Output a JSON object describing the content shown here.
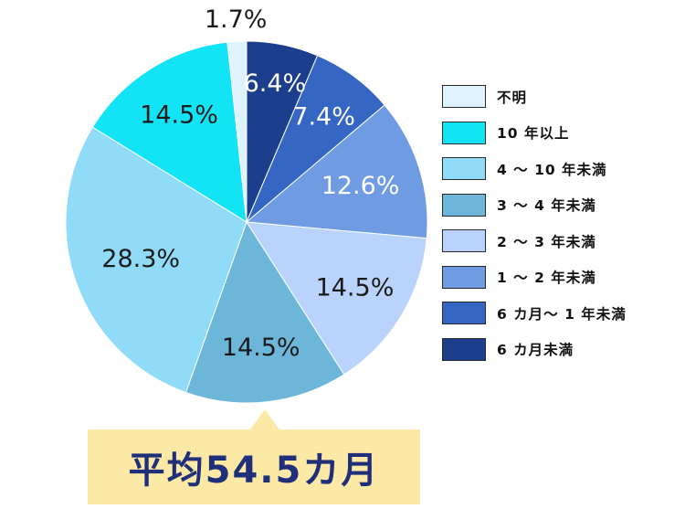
{
  "chart_data": {
    "type": "pie",
    "slices": [
      {
        "label": "6カ月未満",
        "value": 6.4,
        "display": "6.4%",
        "color": "#1b3f8c",
        "text_color": "#ffffff"
      },
      {
        "label": "6カ月～1年未満",
        "value": 7.4,
        "display": "7.4%",
        "color": "#3566c4",
        "text_color": "#ffffff"
      },
      {
        "label": "1～2年未満",
        "value": 12.6,
        "display": "12.6%",
        "color": "#6f9be3",
        "text_color": "#ffffff"
      },
      {
        "label": "2～3年未満",
        "value": 14.5,
        "display": "14.5%",
        "color": "#b9d3fc",
        "text_color": "#1a1a1a"
      },
      {
        "label": "3～4年未満",
        "value": 14.5,
        "display": "14.5%",
        "color": "#6cb7d9",
        "text_color": "#1a1a1a"
      },
      {
        "label": "4～10年未満",
        "value": 28.3,
        "display": "28.3%",
        "color": "#8fdbf8",
        "text_color": "#1a1a1a"
      },
      {
        "label": "10年以上",
        "value": 14.5,
        "display": "14.5%",
        "color": "#12e4f6",
        "text_color": "#1a1a1a"
      },
      {
        "label": "不明",
        "value": 1.7,
        "display": "1.7%",
        "color": "#def3fd",
        "text_color": "#1a1a1a"
      }
    ],
    "legend": {
      "placement": "right",
      "items": [
        {
          "label": "不明",
          "color": "#def3fd"
        },
        {
          "label": "10 年以上",
          "color": "#12e4f6"
        },
        {
          "label": "4 ～ 10 年未満",
          "color": "#8fdbf8"
        },
        {
          "label": "3 ～ 4 年未満",
          "color": "#6cb7d9"
        },
        {
          "label": "2 ～ 3 年未満",
          "color": "#b9d3fc"
        },
        {
          "label": "1 ～ 2 年未満",
          "color": "#6f9be3"
        },
        {
          "label": "6 カ月～ 1 年未満",
          "color": "#3566c4"
        },
        {
          "label": "6 カ月未満",
          "color": "#1b3f8c"
        }
      ]
    },
    "annotation": "平均54.5カ月"
  }
}
